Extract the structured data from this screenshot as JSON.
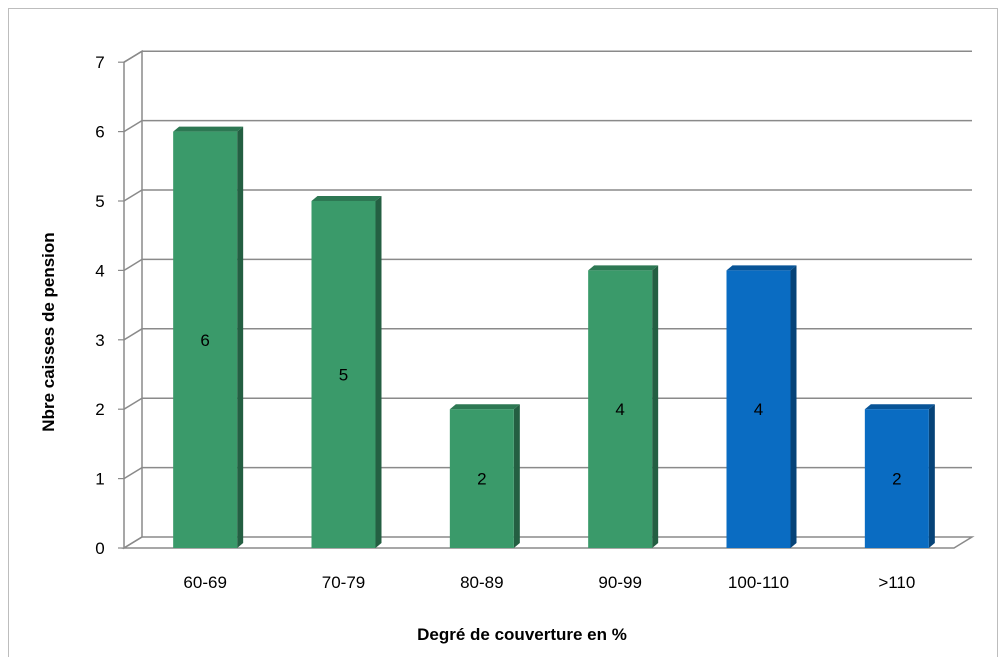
{
  "chart_data": {
    "type": "bar",
    "title": "",
    "xlabel": "Degré de couverture en %",
    "ylabel": "Nbre caisses de pension",
    "categories": [
      "60-69",
      "70-79",
      "80-89",
      "90-99",
      "100-110",
      ">110"
    ],
    "values": [
      6,
      5,
      2,
      4,
      4,
      2
    ],
    "data_labels": [
      "6",
      "5",
      "2",
      "4",
      "4",
      "2"
    ],
    "bar_colors": [
      "#3a9a6a",
      "#3a9a6a",
      "#3a9a6a",
      "#3a9a6a",
      "#0a6cc2",
      "#0a6cc2"
    ],
    "yticks": [
      "0",
      "1",
      "2",
      "3",
      "4",
      "5",
      "6",
      "7"
    ],
    "ylim": [
      0,
      7
    ],
    "grid": true,
    "legend": "none",
    "style": "3d-column"
  }
}
